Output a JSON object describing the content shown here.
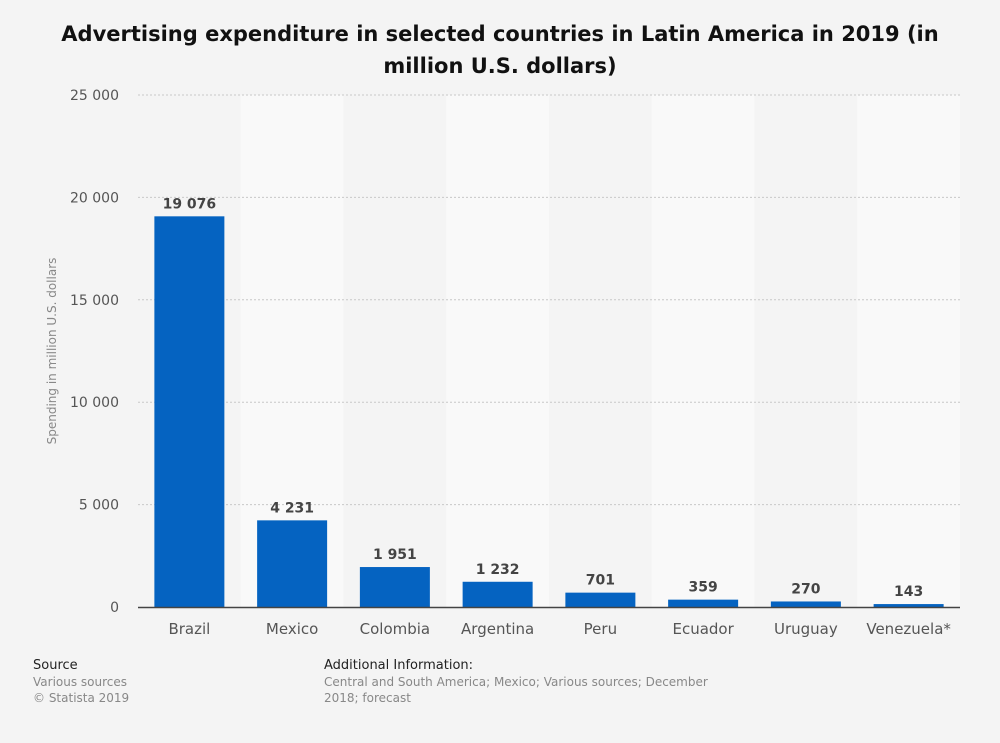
{
  "chart_data": {
    "type": "bar",
    "title": "Advertising expenditure in selected countries in Latin America in 2019 (in million U.S. dollars)",
    "xlabel": "",
    "ylabel": "Spending in million U.S. dollars",
    "categories": [
      "Brazil",
      "Mexico",
      "Colombia",
      "Argentina",
      "Peru",
      "Ecuador",
      "Uruguay",
      "Venezuela*"
    ],
    "values": [
      19076,
      4231,
      1951,
      1232,
      701,
      359,
      270,
      143
    ],
    "data_labels": [
      "19 076",
      "4 231",
      "1 951",
      "1 232",
      "701",
      "359",
      "270",
      "143"
    ],
    "ylim": [
      0,
      25000
    ],
    "yticks": [
      0,
      5000,
      10000,
      15000,
      20000,
      25000
    ],
    "ytick_labels": [
      "0",
      "5 000",
      "10 000",
      "15 000",
      "20 000",
      "25 000"
    ],
    "grid": true,
    "bar_color": "#0563c1"
  },
  "footer": {
    "source_heading": "Source",
    "source_line1": "Various sources",
    "source_line2": "© Statista 2019",
    "info_heading": "Additional Information:",
    "info_text": "Central and South America; Mexico; Various sources; December 2018; forecast"
  }
}
